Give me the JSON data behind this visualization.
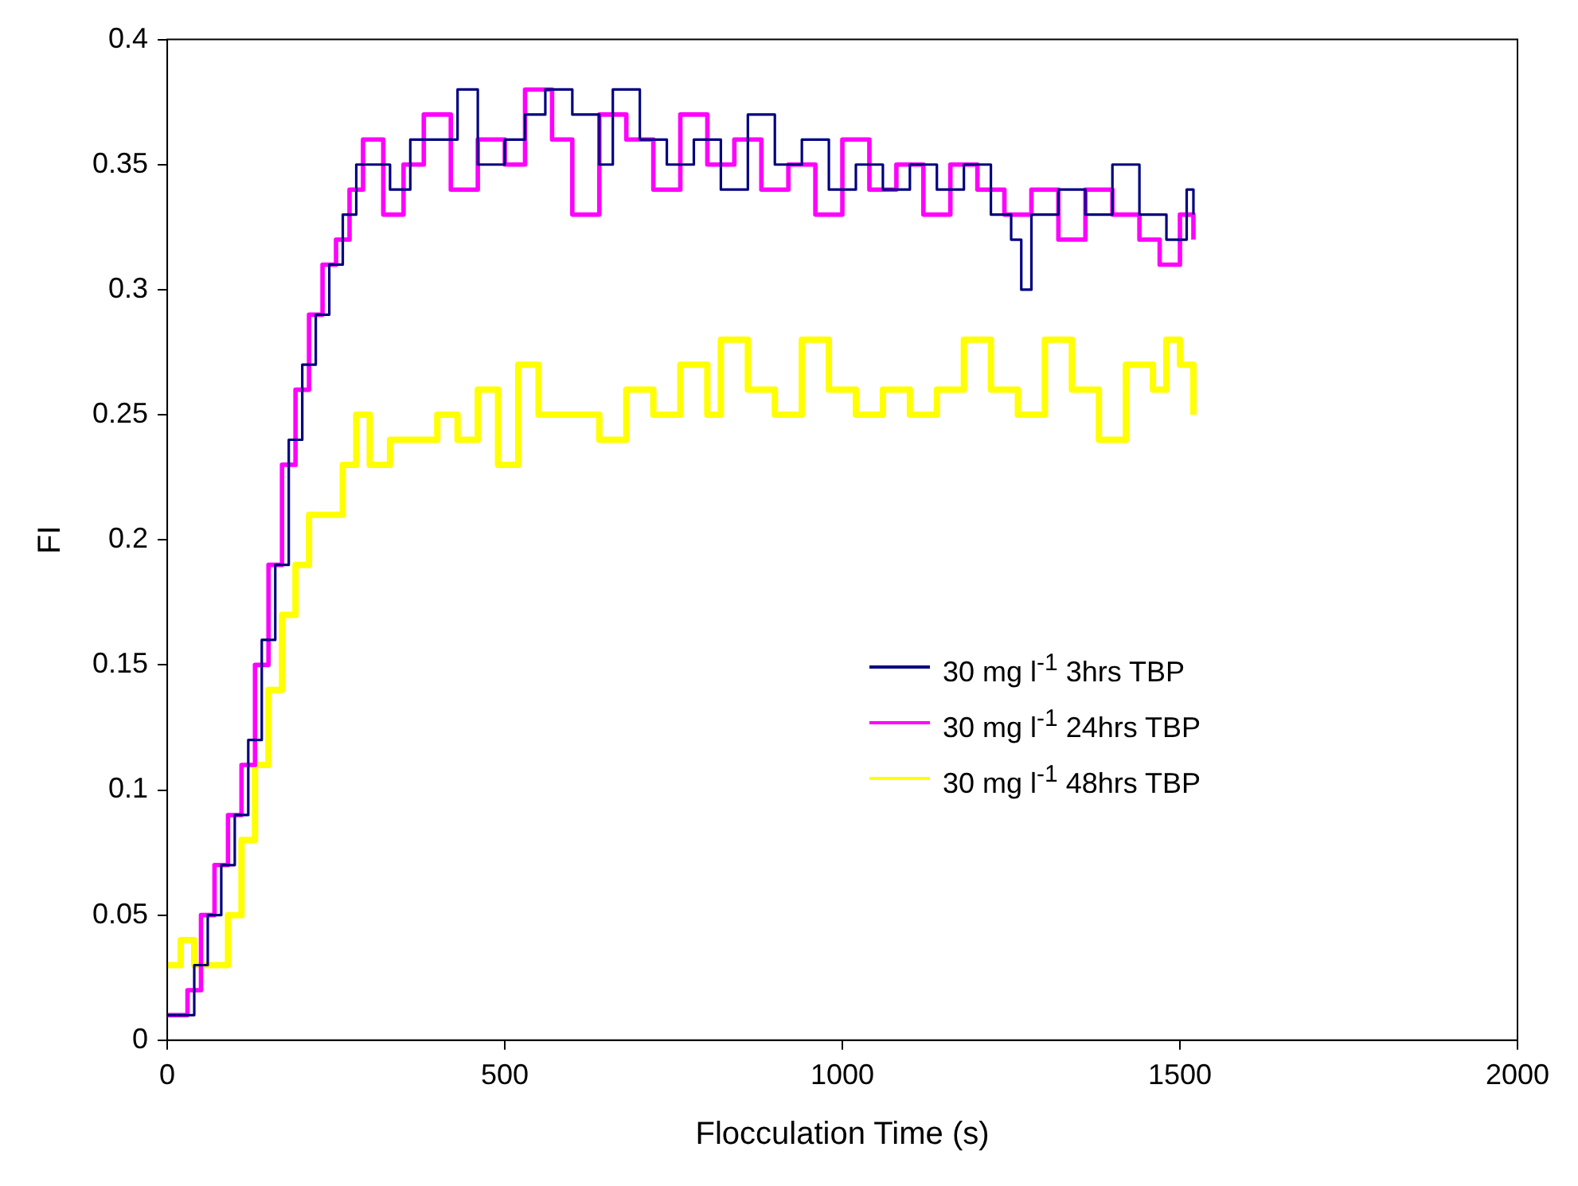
{
  "chart_data": {
    "type": "step",
    "xlabel": "Flocculation Time (s)",
    "ylabel": "FI",
    "xlim": [
      0,
      2000
    ],
    "xticks": [
      0,
      500,
      1000,
      1500,
      2000
    ],
    "ylim": [
      0,
      0.4
    ],
    "yticks": [
      0,
      0.05,
      0.1,
      0.15,
      0.2,
      0.25,
      0.3,
      0.35,
      0.4
    ],
    "grid": false,
    "legend": "right",
    "marker": "none",
    "line_style": "solid",
    "series": [
      {
        "name": "30 mg l$^{-1}$ 3hrs TBP",
        "color": "#000080",
        "x": [
          0,
          25,
          40,
          60,
          80,
          100,
          120,
          140,
          160,
          180,
          200,
          220,
          240,
          260,
          280,
          300,
          330,
          360,
          400,
          430,
          460,
          500,
          530,
          560,
          600,
          640,
          660,
          700,
          740,
          780,
          820,
          860,
          900,
          940,
          980,
          1020,
          1060,
          1100,
          1140,
          1180,
          1220,
          1250,
          1265,
          1280,
          1320,
          1360,
          1400,
          1440,
          1480,
          1510,
          1520
        ],
        "values": [
          0.01,
          0.01,
          0.03,
          0.05,
          0.07,
          0.09,
          0.12,
          0.16,
          0.19,
          0.24,
          0.27,
          0.29,
          0.31,
          0.33,
          0.35,
          0.35,
          0.34,
          0.36,
          0.36,
          0.38,
          0.35,
          0.36,
          0.37,
          0.38,
          0.37,
          0.35,
          0.38,
          0.36,
          0.35,
          0.36,
          0.34,
          0.37,
          0.35,
          0.36,
          0.34,
          0.35,
          0.34,
          0.35,
          0.34,
          0.35,
          0.33,
          0.32,
          0.3,
          0.33,
          0.34,
          0.33,
          0.35,
          0.33,
          0.32,
          0.34,
          0.33
        ]
      },
      {
        "name": "30 mg l$^{-1}$ 24hrs TBP",
        "color": "#ff00ff",
        "x": [
          0,
          30,
          50,
          70,
          90,
          110,
          130,
          150,
          170,
          190,
          210,
          230,
          250,
          270,
          290,
          320,
          350,
          380,
          420,
          460,
          500,
          530,
          570,
          600,
          640,
          680,
          720,
          760,
          800,
          840,
          880,
          920,
          960,
          1000,
          1040,
          1080,
          1120,
          1160,
          1200,
          1240,
          1280,
          1320,
          1360,
          1400,
          1440,
          1470,
          1500,
          1520
        ],
        "values": [
          0.01,
          0.02,
          0.05,
          0.07,
          0.09,
          0.11,
          0.15,
          0.19,
          0.23,
          0.26,
          0.29,
          0.31,
          0.32,
          0.34,
          0.36,
          0.33,
          0.35,
          0.37,
          0.34,
          0.36,
          0.35,
          0.38,
          0.36,
          0.33,
          0.37,
          0.36,
          0.34,
          0.37,
          0.35,
          0.36,
          0.34,
          0.35,
          0.33,
          0.36,
          0.34,
          0.35,
          0.33,
          0.35,
          0.34,
          0.33,
          0.34,
          0.32,
          0.34,
          0.33,
          0.32,
          0.31,
          0.33,
          0.32
        ]
      },
      {
        "name": "30 mg l$^{-1}$ 48hrs TBP",
        "color": "#ffff00",
        "x": [
          0,
          20,
          40,
          80,
          90,
          110,
          130,
          150,
          170,
          190,
          210,
          240,
          260,
          280,
          300,
          330,
          370,
          400,
          430,
          460,
          490,
          520,
          550,
          600,
          640,
          680,
          720,
          760,
          800,
          820,
          860,
          900,
          940,
          980,
          1020,
          1060,
          1100,
          1140,
          1180,
          1220,
          1260,
          1300,
          1340,
          1380,
          1420,
          1460,
          1480,
          1500,
          1520
        ],
        "values": [
          0.03,
          0.04,
          0.03,
          0.03,
          0.05,
          0.08,
          0.11,
          0.14,
          0.17,
          0.19,
          0.21,
          0.21,
          0.23,
          0.25,
          0.23,
          0.24,
          0.24,
          0.25,
          0.24,
          0.26,
          0.23,
          0.27,
          0.25,
          0.25,
          0.24,
          0.26,
          0.25,
          0.27,
          0.25,
          0.28,
          0.26,
          0.25,
          0.28,
          0.26,
          0.25,
          0.26,
          0.25,
          0.26,
          0.28,
          0.26,
          0.25,
          0.28,
          0.26,
          0.24,
          0.27,
          0.26,
          0.28,
          0.27,
          0.25
        ]
      }
    ]
  }
}
